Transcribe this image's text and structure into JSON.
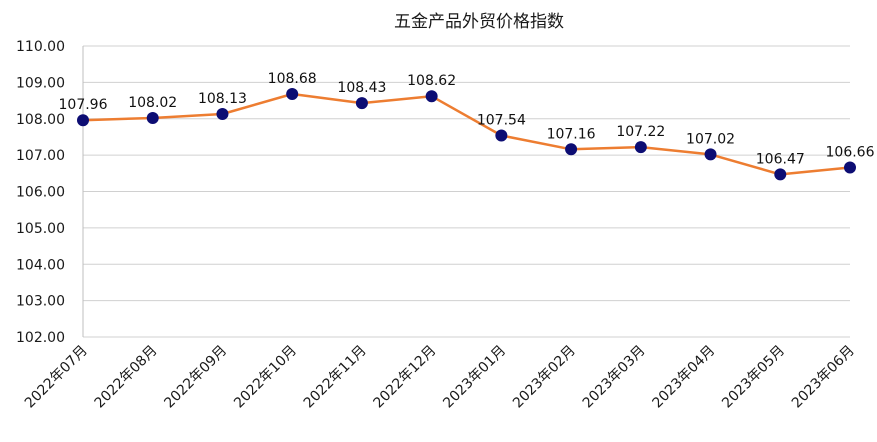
{
  "chart_data": {
    "type": "line",
    "title": "五金产品外贸价格指数",
    "xlabel": "",
    "ylabel": "",
    "categories": [
      "2022年07月",
      "2022年08月",
      "2022年09月",
      "2022年10月",
      "2022年11月",
      "2022年12月",
      "2023年01月",
      "2023年02月",
      "2023年03月",
      "2023年04月",
      "2023年05月",
      "2023年06月"
    ],
    "series": [
      {
        "values": [
          107.96,
          108.02,
          108.13,
          108.68,
          108.43,
          108.62,
          107.54,
          107.16,
          107.22,
          107.02,
          106.47,
          106.66
        ]
      }
    ],
    "value_labels": [
      "107.96",
      "108.02",
      "108.13",
      "108.68",
      "108.43",
      "108.62",
      "107.54",
      "107.16",
      "107.22",
      "107.02",
      "106.47",
      "106.66"
    ],
    "y_tick_labels": [
      "110.00",
      "109.00",
      "108.00",
      "107.00",
      "106.00",
      "105.00",
      "104.00",
      "103.00",
      "102.00"
    ],
    "ylim": [
      102,
      110
    ],
    "grid": true,
    "legend": "none",
    "colors": {
      "line": "#ED7D31",
      "marker": "#0D0D73"
    }
  }
}
